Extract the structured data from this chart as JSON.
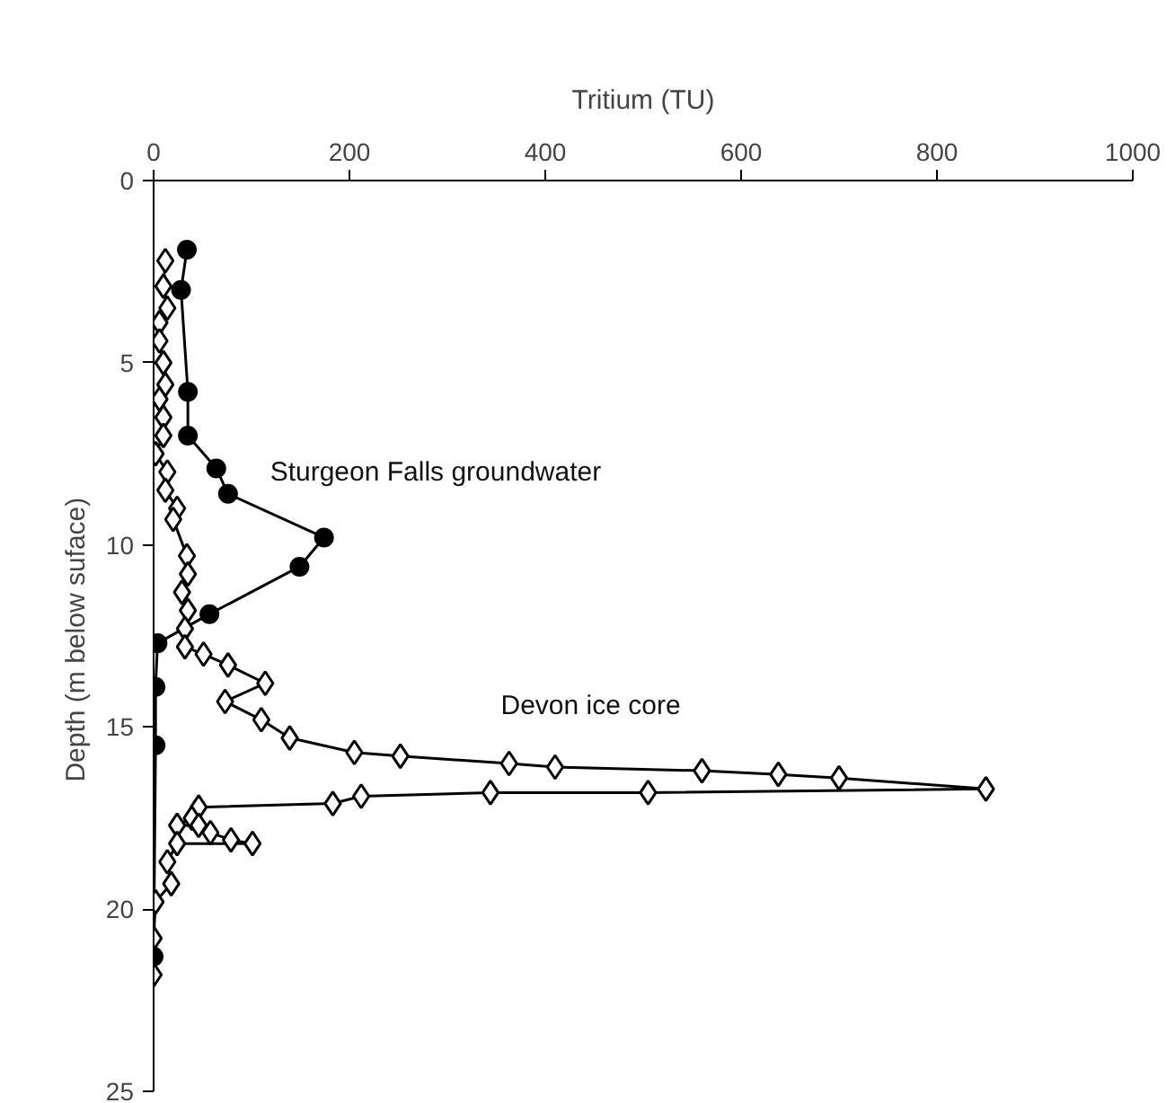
{
  "chart_data": {
    "type": "line",
    "xlabel": "Tritium (TU)",
    "ylabel": "Depth  (m below suface)",
    "xlim": [
      0,
      1000
    ],
    "xticks": [
      0,
      200,
      400,
      600,
      800,
      1000
    ],
    "ylim": [
      25,
      0
    ],
    "yticks": [
      0,
      5,
      10,
      15,
      20,
      25
    ],
    "grid": false,
    "series": [
      {
        "name": "Sturgeon Falls groundwater",
        "color": "#000000",
        "marker": "circle",
        "x": [
          34,
          28,
          35,
          35,
          64,
          76,
          174,
          149,
          57,
          4,
          2,
          2,
          0
        ],
        "values": [
          1.9,
          3.0,
          5.8,
          7.0,
          7.9,
          8.6,
          9.8,
          10.6,
          11.9,
          12.7,
          13.9,
          15.5,
          21.3
        ]
      },
      {
        "name": "Devon ice core",
        "color": "#000000",
        "marker": "diamond",
        "x": [
          12,
          10,
          14,
          6,
          6,
          10,
          12,
          6,
          10,
          10,
          2,
          14,
          12,
          24,
          20,
          34,
          35,
          29,
          35,
          32,
          32,
          51,
          76,
          114,
          73,
          110,
          139,
          205,
          252,
          363,
          410,
          560,
          638,
          700,
          850,
          505,
          344,
          212,
          183,
          46,
          39,
          24,
          46,
          58,
          79,
          101,
          24,
          14,
          18,
          2,
          0,
          0
        ],
        "values": [
          2.2,
          2.9,
          3.5,
          3.9,
          4.4,
          5.0,
          5.6,
          6.0,
          6.5,
          7.0,
          7.5,
          8.0,
          8.5,
          9.0,
          9.3,
          10.3,
          10.8,
          11.3,
          11.8,
          12.3,
          12.8,
          13.0,
          13.3,
          13.8,
          14.3,
          14.8,
          15.3,
          15.7,
          15.8,
          16.0,
          16.1,
          16.2,
          16.3,
          16.4,
          16.7,
          16.8,
          16.8,
          16.9,
          17.1,
          17.2,
          17.5,
          17.7,
          17.7,
          17.9,
          18.1,
          18.2,
          18.2,
          18.7,
          19.3,
          19.8,
          20.8,
          21.8
        ]
      }
    ]
  }
}
